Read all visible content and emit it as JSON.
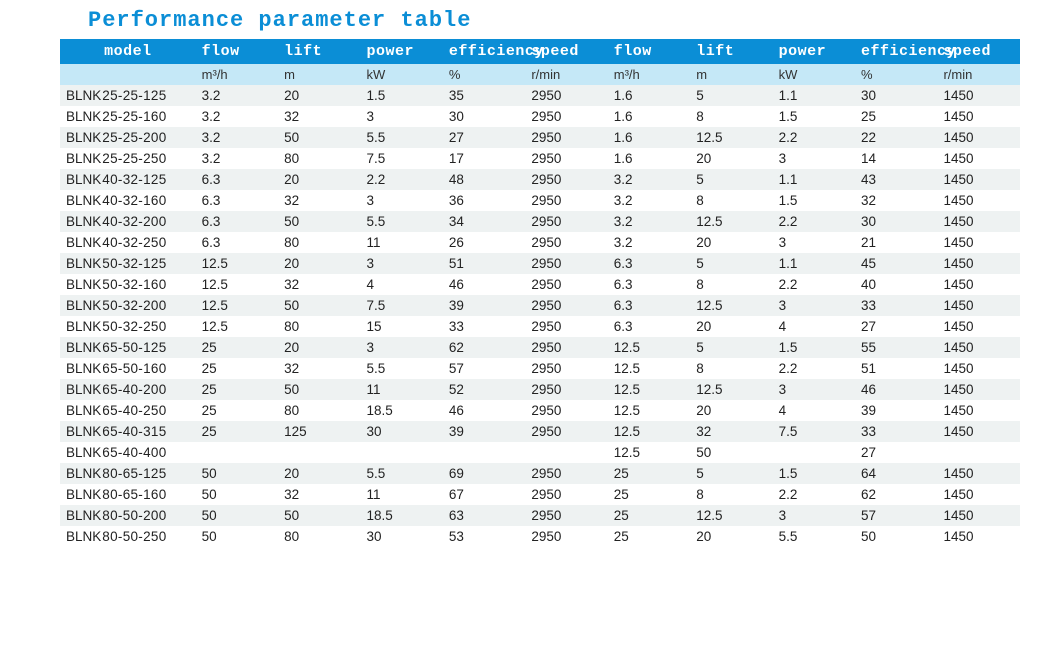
{
  "title": "Performance parameter table",
  "colors": {
    "header_bg": "#0b8ed6",
    "header_text": "#ffffff",
    "units_bg": "#c5e8f7",
    "stripe_bg": "#eef2f2",
    "title_color": "#0b8ed6",
    "body_text": "#222222",
    "page_bg": "#ffffff"
  },
  "typography": {
    "title_font": "Courier New",
    "title_size_pt": 16,
    "header_font": "Courier New",
    "header_size_pt": 11,
    "body_size_pt": 10
  },
  "table": {
    "type": "table",
    "column_widths_pct": [
      13,
      7.9,
      7.9,
      7.9,
      7.9,
      7.9,
      7.9,
      7.9,
      7.9,
      7.9,
      7.9
    ],
    "header_align": [
      "center",
      "left",
      "left",
      "left",
      "left",
      "left",
      "left",
      "left",
      "left",
      "left",
      "left"
    ],
    "columns": [
      "model",
      "flow",
      "lift",
      "power",
      "efficiency",
      "speed",
      "flow",
      "lift",
      "power",
      "efficiency",
      "speed"
    ],
    "units": [
      "",
      "m³/h",
      "m",
      "kW",
      "%",
      "r/min",
      "m³/h",
      "m",
      "kW",
      "%",
      "r/min"
    ],
    "model_prefix": "BLNK",
    "rows": [
      [
        "25-25-125",
        "3.2",
        "20",
        "1.5",
        "35",
        "2950",
        "1.6",
        "5",
        "1.1",
        "30",
        "1450"
      ],
      [
        "25-25-160",
        "3.2",
        "32",
        "3",
        "30",
        "2950",
        "1.6",
        "8",
        "1.5",
        "25",
        "1450"
      ],
      [
        "25-25-200",
        "3.2",
        "50",
        "5.5",
        "27",
        "2950",
        "1.6",
        "12.5",
        "2.2",
        "22",
        "1450"
      ],
      [
        "25-25-250",
        "3.2",
        "80",
        "7.5",
        "17",
        "2950",
        "1.6",
        "20",
        "3",
        "14",
        "1450"
      ],
      [
        "40-32-125",
        "6.3",
        "20",
        "2.2",
        "48",
        "2950",
        "3.2",
        "5",
        "1.1",
        "43",
        "1450"
      ],
      [
        "40-32-160",
        "6.3",
        "32",
        "3",
        "36",
        "2950",
        "3.2",
        "8",
        "1.5",
        "32",
        "1450"
      ],
      [
        "40-32-200",
        "6.3",
        "50",
        "5.5",
        "34",
        "2950",
        "3.2",
        "12.5",
        "2.2",
        "30",
        "1450"
      ],
      [
        "40-32-250",
        "6.3",
        "80",
        "11",
        "26",
        "2950",
        "3.2",
        "20",
        "3",
        "21",
        "1450"
      ],
      [
        "50-32-125",
        "12.5",
        "20",
        "3",
        "51",
        "2950",
        "6.3",
        "5",
        "1.1",
        "45",
        "1450"
      ],
      [
        "50-32-160",
        "12.5",
        "32",
        "4",
        "46",
        "2950",
        "6.3",
        "8",
        "2.2",
        "40",
        "1450"
      ],
      [
        "50-32-200",
        "12.5",
        "50",
        "7.5",
        "39",
        "2950",
        "6.3",
        "12.5",
        "3",
        "33",
        "1450"
      ],
      [
        "50-32-250",
        "12.5",
        "80",
        "15",
        "33",
        "2950",
        "6.3",
        "20",
        "4",
        "27",
        "1450"
      ],
      [
        "65-50-125",
        "25",
        "20",
        "3",
        "62",
        "2950",
        "12.5",
        "5",
        "1.5",
        "55",
        "1450"
      ],
      [
        "65-50-160",
        "25",
        "32",
        "5.5",
        "57",
        "2950",
        "12.5",
        "8",
        "2.2",
        "51",
        "1450"
      ],
      [
        "65-40-200",
        "25",
        "50",
        "11",
        "52",
        "2950",
        "12.5",
        "12.5",
        "3",
        "46",
        "1450"
      ],
      [
        "65-40-250",
        "25",
        "80",
        "18.5",
        "46",
        "2950",
        "12.5",
        "20",
        "4",
        "39",
        "1450"
      ],
      [
        "65-40-315",
        "25",
        "125",
        "30",
        "39",
        "2950",
        "12.5",
        "32",
        "7.5",
        "33",
        "1450"
      ],
      [
        "65-40-400",
        "",
        "",
        "",
        "",
        "",
        "12.5",
        "50",
        "",
        "27",
        ""
      ],
      [
        "80-65-125",
        "50",
        "20",
        "5.5",
        "69",
        "2950",
        "25",
        "5",
        "1.5",
        "64",
        "1450"
      ],
      [
        "80-65-160",
        "50",
        "32",
        "11",
        "67",
        "2950",
        "25",
        "8",
        "2.2",
        "62",
        "1450"
      ],
      [
        "80-50-200",
        "50",
        "50",
        "18.5",
        "63",
        "2950",
        "25",
        "12.5",
        "3",
        "57",
        "1450"
      ],
      [
        "80-50-250",
        "50",
        "80",
        "30",
        "53",
        "2950",
        "25",
        "20",
        "5.5",
        "50",
        "1450"
      ]
    ]
  }
}
